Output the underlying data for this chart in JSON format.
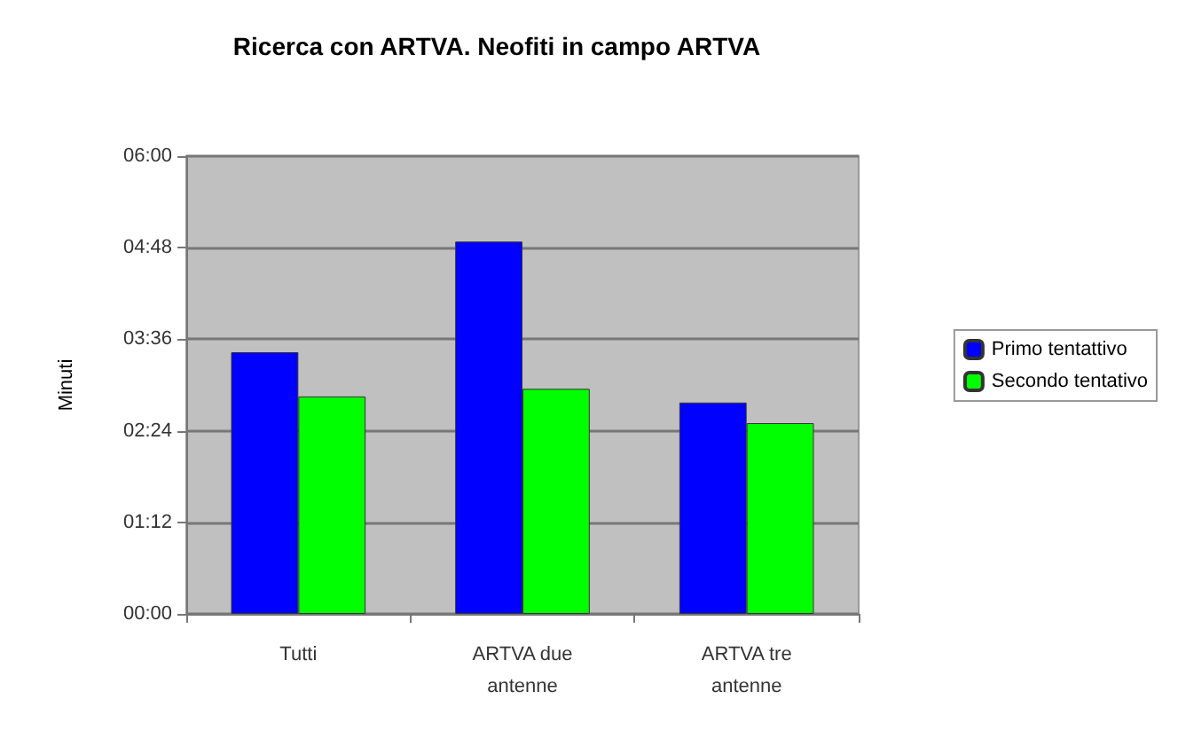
{
  "chart_data": {
    "type": "bar",
    "title": "Ricerca con ARTVA. Neofiti in campo ARTVA",
    "ylabel": "Minuti",
    "categories": [
      "Tutti",
      "ARTVA due\nantenne",
      "ARTVA tre\nantenne"
    ],
    "series": [
      {
        "name": "Primo tentattivo",
        "color": "#0000ff",
        "values": [
          3.43,
          4.88,
          2.77
        ]
      },
      {
        "name": "Secondo tentativo",
        "color": "#00ff00",
        "values": [
          2.85,
          2.95,
          2.5
        ]
      }
    ],
    "ylim": [
      0,
      6
    ],
    "yticks": [
      {
        "value": 0,
        "label": "00:00"
      },
      {
        "value": 1.2,
        "label": "01:12"
      },
      {
        "value": 2.4,
        "label": "02:24"
      },
      {
        "value": 3.6,
        "label": "03:36"
      },
      {
        "value": 4.8,
        "label": "04:48"
      },
      {
        "value": 6,
        "label": "06:00"
      }
    ],
    "grid": "y",
    "legend": "right"
  }
}
